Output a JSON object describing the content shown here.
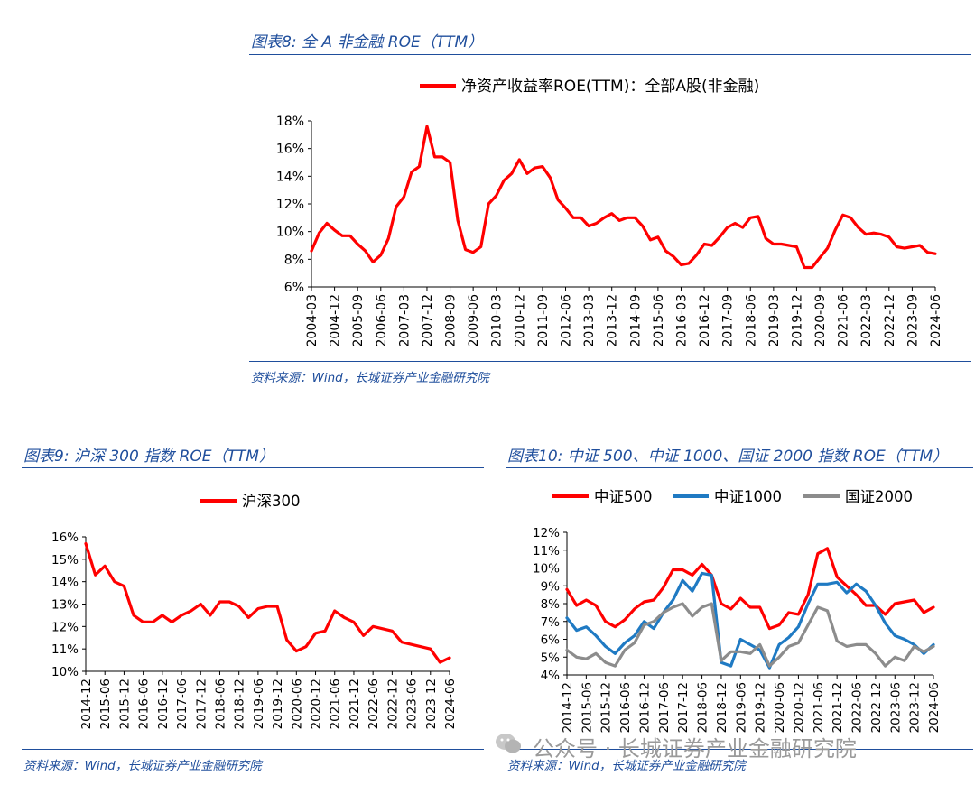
{
  "captions": {
    "fig8": "图表8:  全 A 非金融 ROE（TTM）",
    "fig9": "图表9:  沪深 300  指数 ROE（TTM）",
    "fig10": "图表10:  中证 500、中证 1000、国证 2000 指数 ROE（TTM）"
  },
  "source": "资料来源：Wind，长城证券产业金融研究院",
  "watermark": "公众号 · 长城证券产业金融研究院",
  "colors": {
    "caption": "#1f4e9c",
    "red": "#ff0000",
    "blue": "#1f7ac3",
    "gray": "#8c8c8c"
  },
  "chart_data": [
    {
      "type": "line",
      "legend_position": "top",
      "x": [
        "2004-03",
        "2004-06",
        "2004-09",
        "2004-12",
        "2005-03",
        "2005-06",
        "2005-09",
        "2005-12",
        "2006-03",
        "2006-06",
        "2006-09",
        "2006-12",
        "2007-03",
        "2007-06",
        "2007-09",
        "2007-12",
        "2008-03",
        "2008-06",
        "2008-09",
        "2008-12",
        "2009-03",
        "2009-06",
        "2009-09",
        "2009-12",
        "2010-03",
        "2010-06",
        "2010-09",
        "2010-12",
        "2011-03",
        "2011-06",
        "2011-09",
        "2011-12",
        "2012-03",
        "2012-06",
        "2012-09",
        "2012-12",
        "2013-03",
        "2013-06",
        "2013-09",
        "2013-12",
        "2014-03",
        "2014-06",
        "2014-09",
        "2014-12",
        "2015-03",
        "2015-06",
        "2015-09",
        "2015-12",
        "2016-03",
        "2016-06",
        "2016-09",
        "2016-12",
        "2017-03",
        "2017-06",
        "2017-09",
        "2017-12",
        "2018-03",
        "2018-06",
        "2018-09",
        "2018-12",
        "2019-03",
        "2019-06",
        "2019-09",
        "2019-12",
        "2020-03",
        "2020-06",
        "2020-09",
        "2020-12",
        "2021-03",
        "2021-06",
        "2021-09",
        "2021-12",
        "2022-03",
        "2022-06",
        "2022-09",
        "2022-12",
        "2023-03",
        "2023-06",
        "2023-09",
        "2023-12",
        "2024-03",
        "2024-06"
      ],
      "tick_labels": [
        "2004-03",
        "2004-12",
        "2005-09",
        "2006-06",
        "2007-03",
        "2007-12",
        "2008-09",
        "2009-06",
        "2010-03",
        "2010-12",
        "2011-09",
        "2012-06",
        "2013-03",
        "2013-12",
        "2014-09",
        "2015-06",
        "2016-03",
        "2016-12",
        "2017-09",
        "2018-06",
        "2019-03",
        "2019-12",
        "2020-09",
        "2021-06",
        "2022-03",
        "2022-12",
        "2023-09",
        "2024-06"
      ],
      "series": [
        {
          "name": "净资产收益率ROE(TTM)：全部A股(非金融)",
          "color": "#ff0000",
          "values": [
            8.6,
            9.9,
            10.6,
            10.1,
            9.7,
            9.7,
            9.1,
            8.6,
            7.8,
            8.3,
            9.5,
            11.8,
            12.5,
            14.3,
            14.7,
            17.6,
            15.4,
            15.4,
            15.0,
            10.8,
            8.7,
            8.5,
            8.9,
            12.0,
            12.6,
            13.7,
            14.2,
            15.2,
            14.2,
            14.6,
            14.7,
            13.9,
            12.3,
            11.7,
            11.0,
            11.0,
            10.4,
            10.6,
            11.0,
            11.3,
            10.8,
            11.0,
            11.0,
            10.4,
            9.4,
            9.6,
            8.6,
            8.2,
            7.6,
            7.7,
            8.3,
            9.1,
            9.0,
            9.6,
            10.3,
            10.6,
            10.3,
            11.0,
            11.1,
            9.5,
            9.1,
            9.1,
            9.0,
            8.9,
            7.4,
            7.4,
            8.1,
            8.8,
            10.1,
            11.2,
            11.0,
            10.3,
            9.8,
            9.9,
            9.8,
            9.6,
            8.9,
            8.8,
            8.9,
            9.0,
            8.5,
            8.4
          ]
        }
      ],
      "ylim": [
        6,
        18
      ],
      "yticks": [
        "6%",
        "8%",
        "10%",
        "12%",
        "14%",
        "16%",
        "18%"
      ],
      "grid": false
    },
    {
      "type": "line",
      "legend_position": "top",
      "x": [
        "2014-12",
        "2015-03",
        "2015-06",
        "2015-09",
        "2015-12",
        "2016-03",
        "2016-06",
        "2016-09",
        "2016-12",
        "2017-03",
        "2017-06",
        "2017-09",
        "2017-12",
        "2018-03",
        "2018-06",
        "2018-09",
        "2018-12",
        "2019-03",
        "2019-06",
        "2019-09",
        "2019-12",
        "2020-03",
        "2020-06",
        "2020-09",
        "2020-12",
        "2021-03",
        "2021-06",
        "2021-09",
        "2021-12",
        "2022-03",
        "2022-06",
        "2022-09",
        "2022-12",
        "2023-03",
        "2023-06",
        "2023-09",
        "2023-12",
        "2024-03",
        "2024-06"
      ],
      "tick_labels": [
        "2014-12",
        "2015-06",
        "2015-12",
        "2016-06",
        "2016-12",
        "2017-06",
        "2017-12",
        "2018-06",
        "2018-12",
        "2019-06",
        "2019-12",
        "2020-06",
        "2020-12",
        "2021-06",
        "2021-12",
        "2022-06",
        "2022-12",
        "2023-06",
        "2023-12",
        "2024-06"
      ],
      "series": [
        {
          "name": "沪深300",
          "color": "#ff0000",
          "values": [
            15.7,
            14.3,
            14.7,
            14.0,
            13.8,
            12.5,
            12.2,
            12.2,
            12.5,
            12.2,
            12.5,
            12.7,
            13.0,
            12.5,
            13.1,
            13.1,
            12.9,
            12.4,
            12.8,
            12.9,
            12.9,
            11.4,
            10.9,
            11.1,
            11.7,
            11.8,
            12.7,
            12.4,
            12.2,
            11.6,
            12.0,
            11.9,
            11.8,
            11.3,
            11.2,
            11.1,
            11.0,
            10.4,
            10.6
          ]
        }
      ],
      "ylim": [
        10,
        16
      ],
      "yticks": [
        "10%",
        "11%",
        "12%",
        "13%",
        "14%",
        "15%",
        "16%"
      ],
      "grid": false
    },
    {
      "type": "line",
      "legend_position": "top",
      "x": [
        "2014-12",
        "2015-03",
        "2015-06",
        "2015-09",
        "2015-12",
        "2016-03",
        "2016-06",
        "2016-09",
        "2016-12",
        "2017-03",
        "2017-06",
        "2017-09",
        "2017-12",
        "2018-03",
        "2018-06",
        "2018-09",
        "2018-12",
        "2019-03",
        "2019-06",
        "2019-09",
        "2019-12",
        "2020-03",
        "2020-06",
        "2020-09",
        "2020-12",
        "2021-03",
        "2021-06",
        "2021-09",
        "2021-12",
        "2022-03",
        "2022-06",
        "2022-09",
        "2022-12",
        "2023-03",
        "2023-06",
        "2023-09",
        "2023-12",
        "2024-03",
        "2024-06"
      ],
      "tick_labels": [
        "2014-12",
        "2015-06",
        "2015-12",
        "2016-06",
        "2016-12",
        "2017-06",
        "2017-12",
        "2018-06",
        "2018-12",
        "2019-06",
        "2019-12",
        "2020-06",
        "2020-12",
        "2021-06",
        "2021-12",
        "2022-06",
        "2022-12",
        "2023-06",
        "2023-12",
        "2024-06"
      ],
      "series": [
        {
          "name": "中证500",
          "color": "#ff0000",
          "values": [
            8.8,
            7.9,
            8.2,
            7.9,
            7.0,
            6.7,
            7.1,
            7.7,
            8.1,
            8.2,
            8.9,
            9.9,
            9.9,
            9.6,
            10.2,
            9.6,
            8.0,
            7.7,
            8.3,
            7.8,
            7.8,
            6.6,
            6.8,
            7.5,
            7.4,
            8.5,
            10.8,
            11.1,
            9.5,
            9.0,
            8.5,
            7.9,
            7.9,
            7.4,
            8.0,
            8.1,
            8.2,
            7.5,
            7.8
          ]
        },
        {
          "name": "中证1000",
          "color": "#1f7ac3",
          "values": [
            7.2,
            6.5,
            6.7,
            6.2,
            5.6,
            5.2,
            5.8,
            6.2,
            7.0,
            6.6,
            7.5,
            8.2,
            9.3,
            8.7,
            9.7,
            9.6,
            4.7,
            4.5,
            6.0,
            5.7,
            5.4,
            4.4,
            5.7,
            6.1,
            6.7,
            8.0,
            9.1,
            9.1,
            9.2,
            8.6,
            9.1,
            8.7,
            7.9,
            6.9,
            6.2,
            6.0,
            5.7,
            5.2,
            5.7
          ]
        },
        {
          "name": "国证2000",
          "color": "#8c8c8c",
          "values": [
            5.4,
            5.0,
            4.9,
            5.2,
            4.7,
            4.5,
            5.4,
            5.8,
            6.8,
            7.0,
            7.5,
            7.8,
            8.0,
            7.3,
            7.8,
            8.0,
            4.8,
            5.3,
            5.3,
            5.2,
            5.7,
            4.5,
            5.0,
            5.6,
            5.8,
            6.8,
            7.8,
            7.6,
            5.9,
            5.6,
            5.7,
            5.7,
            5.2,
            4.5,
            5.0,
            4.8,
            5.6,
            5.3,
            5.6
          ]
        }
      ],
      "ylim": [
        4,
        12
      ],
      "yticks": [
        "4%",
        "5%",
        "6%",
        "7%",
        "8%",
        "9%",
        "10%",
        "11%",
        "12%"
      ],
      "grid": false
    }
  ]
}
